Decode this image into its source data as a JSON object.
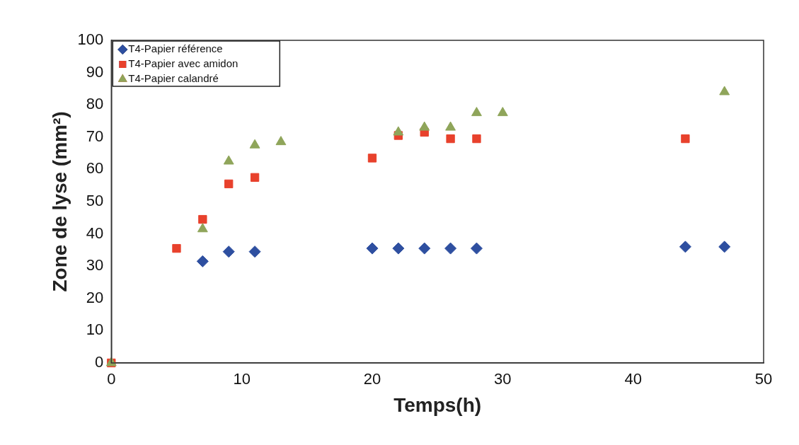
{
  "chart_data": {
    "type": "scatter",
    "xlabel": "Temps(h)",
    "ylabel": "Zone de lyse (mm²)",
    "xlim": [
      0,
      50
    ],
    "xticks": [
      0,
      10,
      20,
      30,
      40,
      50
    ],
    "ylim": [
      0,
      100
    ],
    "yticks": [
      0,
      10,
      20,
      30,
      40,
      50,
      60,
      70,
      80,
      90,
      100
    ],
    "grid": false,
    "legend": "top left",
    "series": [
      {
        "name": "T4-Papier référence",
        "color": "#2e4fa0",
        "marker": "diamond",
        "x": [
          7,
          9,
          11,
          20,
          22,
          24,
          26,
          28,
          44,
          47
        ],
        "values": [
          31.5,
          34.5,
          34.5,
          35.5,
          35.5,
          35.5,
          35.5,
          35.5,
          36,
          36
        ]
      },
      {
        "name": "T4-Papier avec amidon",
        "color": "#e8412c",
        "marker": "square",
        "x": [
          0,
          5,
          7,
          9,
          11,
          20,
          22,
          24,
          26,
          28,
          44
        ],
        "values": [
          0,
          35.5,
          44.5,
          55.5,
          57.5,
          63.5,
          70.5,
          71.5,
          69.5,
          69.5,
          69.5
        ]
      },
      {
        "name": "T4-Papier calandré",
        "color": "#8fa55a",
        "marker": "triangle",
        "x": [
          0,
          7,
          9,
          11,
          13,
          22,
          24,
          26,
          28,
          30,
          47
        ],
        "values": [
          0,
          41.5,
          62.5,
          67.5,
          68.5,
          71.5,
          73,
          73,
          77.5,
          77.5,
          84
        ]
      }
    ]
  }
}
